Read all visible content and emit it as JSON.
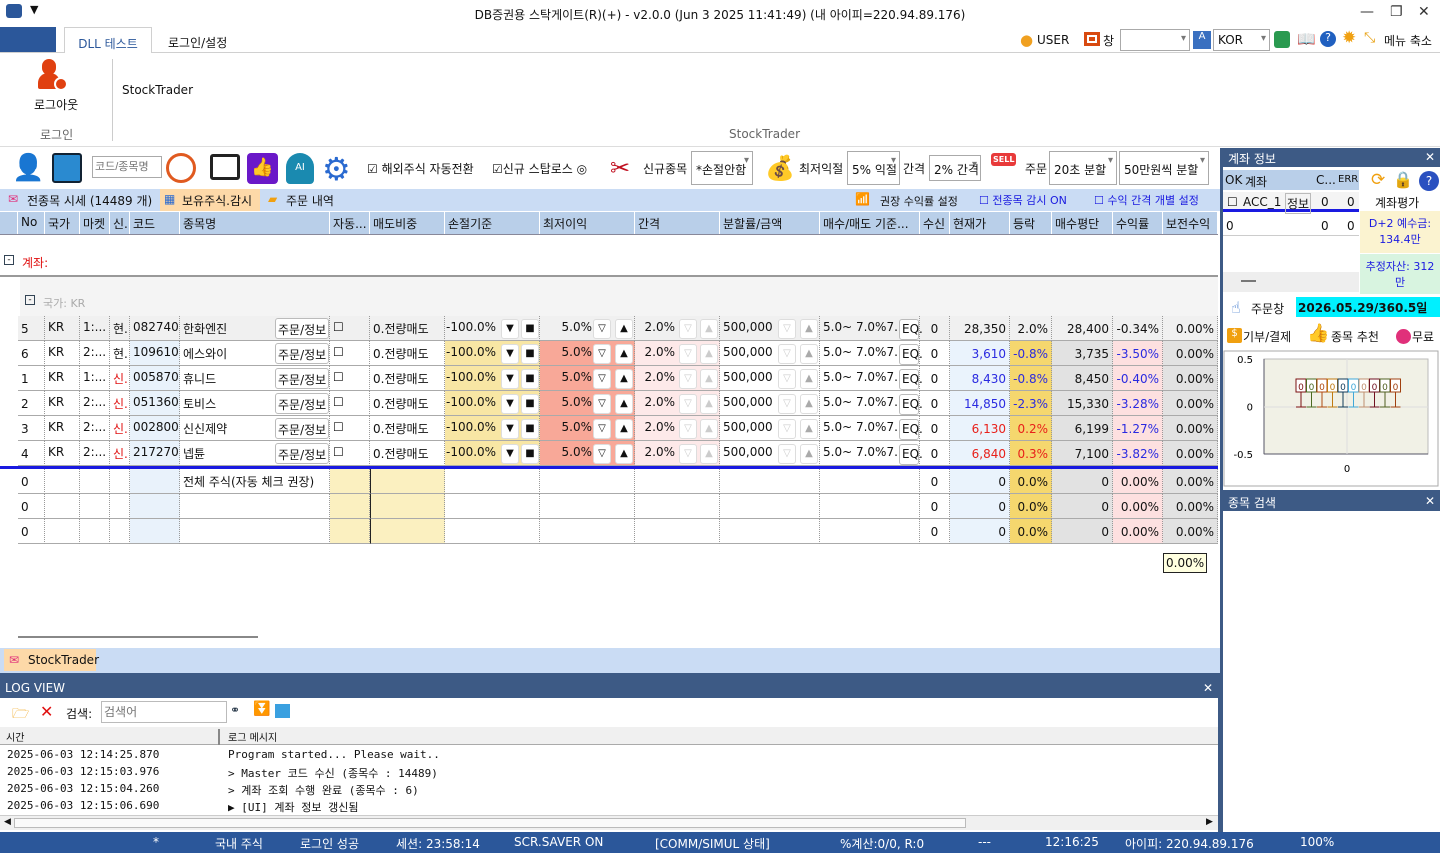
{
  "window": {
    "title": "DB증권용 스탁게이트(R)(+) - v2.0.0 (Jun  3 2025 11:41:49) (내 아이피=220.94.89.176)"
  },
  "ribbon_tabs": [
    "DLL 테스트",
    "로그인/설정"
  ],
  "topright": {
    "user": "USER",
    "window": "창",
    "window_select": "",
    "lang": "KOR",
    "menu_collapse": "메뉴 축소"
  },
  "ribbon": {
    "logout": "로그아웃",
    "group_login": "로그인",
    "stocktrader": "StockTrader",
    "group_stocktrader": "StockTrader"
  },
  "toolbar": {
    "search_placeholder": "코드/종목명",
    "overseas_auto": "해외주식 자동전환",
    "new_stoploss": "신규 스탑로스",
    "new_stock": "신규종목",
    "new_stock_select": "*손절안함",
    "min_profit": "최저익절",
    "min_profit_select": "5% 익절",
    "interval": "간격",
    "interval_select": "2% 간격",
    "order": "주문",
    "order_select": "20초 분할",
    "amount_select": "50만원씩 분할"
  },
  "subtabs": {
    "all_quotes": "전종목 시세 (14489 개)",
    "holdings": "보유주식.감시",
    "orders": "주문 내역",
    "recommend": "권장 수익률 설정",
    "monitor_all": "전종목 감시 ON",
    "individual": "수익 간격 개별 설정"
  },
  "grid": {
    "headers": [
      "No",
      "국가",
      "마켓",
      "신.",
      "코드",
      "종목명",
      "자동...",
      "매도비중",
      "손절기준",
      "최저이익",
      "간격",
      "분할률/금액",
      "매수/매도 기준...",
      "수신",
      "현재가",
      "등락",
      "매수평단",
      "수익률",
      "보전수익"
    ],
    "account_group": "계좌:",
    "country_group": "국가: KR",
    "order_btn": "주문/정보",
    "eq_btn": "EQ.",
    "rows": [
      {
        "no": "5",
        "country": "KR",
        "market": "1:...",
        "type": "현.",
        "code": "082740",
        "name": "한화엔진",
        "sell_ratio": "0.전량매도",
        "stop": "-100.0%",
        "min": "5.0%",
        "gap": "2.0%",
        "amount": "500,000",
        "basis": "5.0~ 7.0%7...",
        "recv": "0",
        "price": "28,350",
        "change": "2.0%",
        "avg": "28,400",
        "rate": "-0.34%",
        "keep": "0.00%",
        "dir": "up"
      },
      {
        "no": "6",
        "country": "KR",
        "market": "2:...",
        "type": "현.",
        "code": "109610",
        "name": "에스와이",
        "sell_ratio": "0.전량매도",
        "stop": "-100.0%",
        "min": "5.0%",
        "gap": "2.0%",
        "amount": "500,000",
        "basis": "5.0~ 7.0%7...",
        "recv": "0",
        "price": "3,610",
        "change": "-0.8%",
        "avg": "3,735",
        "rate": "-3.50%",
        "keep": "0.00%",
        "dir": "down"
      },
      {
        "no": "1",
        "country": "KR",
        "market": "1:...",
        "type": "신.",
        "code": "005870",
        "name": "휴니드",
        "sell_ratio": "0.전량매도",
        "stop": "-100.0%",
        "min": "5.0%",
        "gap": "2.0%",
        "amount": "500,000",
        "basis": "5.0~ 7.0%7...",
        "recv": "0",
        "price": "8,430",
        "change": "-0.8%",
        "avg": "8,450",
        "rate": "-0.40%",
        "keep": "0.00%",
        "dir": "down"
      },
      {
        "no": "2",
        "country": "KR",
        "market": "2:...",
        "type": "신.",
        "code": "051360",
        "name": "토비스",
        "sell_ratio": "0.전량매도",
        "stop": "-100.0%",
        "min": "5.0%",
        "gap": "2.0%",
        "amount": "500,000",
        "basis": "5.0~ 7.0%7...",
        "recv": "0",
        "price": "14,850",
        "change": "-2.3%",
        "avg": "15,330",
        "rate": "-3.28%",
        "keep": "0.00%",
        "dir": "down"
      },
      {
        "no": "3",
        "country": "KR",
        "market": "2:...",
        "type": "신.",
        "code": "002800",
        "name": "신신제약",
        "sell_ratio": "0.전량매도",
        "stop": "-100.0%",
        "min": "5.0%",
        "gap": "2.0%",
        "amount": "500,000",
        "basis": "5.0~ 7.0%7...",
        "recv": "0",
        "price": "6,130",
        "change": "0.2%",
        "avg": "6,199",
        "rate": "-1.27%",
        "keep": "0.00%",
        "dir": "up2"
      },
      {
        "no": "4",
        "country": "KR",
        "market": "2:...",
        "type": "신.",
        "code": "217270",
        "name": "넵튠",
        "sell_ratio": "0.전량매도",
        "stop": "-100.0%",
        "min": "5.0%",
        "gap": "2.0%",
        "amount": "500,000",
        "basis": "5.0~ 7.0%7...",
        "recv": "0",
        "price": "6,840",
        "change": "0.3%",
        "avg": "7,100",
        "rate": "-3.82%",
        "keep": "0.00%",
        "dir": "up2"
      }
    ],
    "summary_label": "전체 주식(자동 체크 권장)",
    "summary_rows": [
      {
        "no": "0",
        "recv": "0",
        "price": "0",
        "change": "0.0%",
        "avg": "0",
        "rate": "0.00%",
        "keep": "0.00%"
      },
      {
        "no": "0",
        "recv": "0",
        "price": "0",
        "change": "0.0%",
        "avg": "0",
        "rate": "0.00%",
        "keep": "0.00%"
      },
      {
        "no": "0",
        "recv": "0",
        "price": "0",
        "change": "0.0%",
        "avg": "0",
        "rate": "0.00%",
        "keep": "0.00%"
      }
    ],
    "tooltip": "0.00%"
  },
  "bottom_tab": "StockTrader",
  "log": {
    "title": "LOG VIEW",
    "search_label": "검색:",
    "search_placeholder": "검색어",
    "col_time": "시간",
    "col_msg": "로그 메시지",
    "rows": [
      {
        "time": "2025-06-03 12:14:25.870",
        "msg": "Program started... Please wait.."
      },
      {
        "time": "2025-06-03 12:15:03.976",
        "msg": "> Master 코드 수신 (종목수 : 14489)"
      },
      {
        "time": "2025-06-03 12:15:04.260",
        "msg": "> 계좌 조회 수행 완료 (종목수 : 6)"
      },
      {
        "time": "2025-06-03 12:15:06.690",
        "msg": "▶ [UI] 계좌 정보 갱신됨"
      }
    ]
  },
  "account_panel": {
    "title": "계좌 정보",
    "cols": [
      "OK",
      "계좌",
      "C...",
      "ERR"
    ],
    "acc": "ACC_1",
    "info": "정보",
    "c": "0",
    "err": "0",
    "row2": [
      "0",
      "",
      "0",
      "0"
    ],
    "eval": "계좌평가",
    "deposit": "D+2 예수금: 134.4만",
    "assets": "추정자산: 312만",
    "order_window": "주문창",
    "expiry": "2026.05.29/360.5일",
    "donate": "기부/결제",
    "recommend": "종목 추천",
    "free": "무료"
  },
  "mini_chart": {
    "type": "bar",
    "y_ticks": [
      "0.5",
      "0",
      "-0.5"
    ],
    "x_ticks": [
      "0"
    ],
    "labels": [
      "0",
      "0",
      "0",
      "0",
      "0",
      "0",
      "0",
      "0",
      "0",
      "0"
    ],
    "colors": [
      "#7a1010",
      "#4a6a20",
      "#b04a10",
      "#c07a10",
      "#103a5a",
      "#40a8d8",
      "#c09070",
      "#701020",
      "#506020",
      "#a04010"
    ]
  },
  "search_panel": {
    "title": "종목 검색"
  },
  "statusbar": {
    "star": "*",
    "market": "국내 주식",
    "login": "로그인 성공",
    "session": "세션: 23:58:14",
    "saver": "SCR.SAVER ON",
    "comm": "[COMM/SIMUL 상태]",
    "calc": "%계산:0/0, R:0",
    "dash": "---",
    "time": "12:16:25",
    "ip": "아이피: 220.94.89.176",
    "zoom": "100%"
  },
  "colors": {
    "accent": "#2b579a",
    "panel": "#3d5a85",
    "up": "#e8201a",
    "down": "#2a2ae0"
  }
}
